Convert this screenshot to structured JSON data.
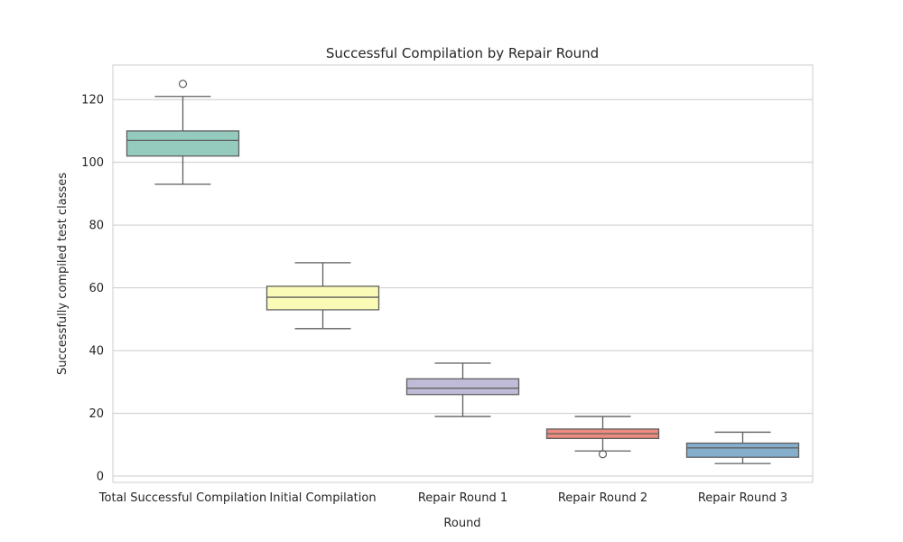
{
  "chart_data": {
    "type": "box",
    "title": "Successful Compilation by Repair Round",
    "xlabel": "Round",
    "ylabel": "Successfully compiled test classes",
    "ylim": [
      -2,
      131
    ],
    "yticks": [
      0,
      20,
      40,
      60,
      80,
      100,
      120
    ],
    "grid": "horizontal",
    "categories": [
      "Total Successful Compilation",
      "Initial Compilation",
      "Repair Round 1",
      "Repair Round 2",
      "Repair Round 3"
    ],
    "boxes": [
      {
        "whisker_low": 93,
        "q1": 102,
        "median": 107,
        "q3": 110,
        "whisker_high": 121,
        "outliers": [
          125
        ],
        "color": "#95cbbf"
      },
      {
        "whisker_low": 47,
        "q1": 53,
        "median": 57,
        "q3": 60.5,
        "whisker_high": 68,
        "outliers": [],
        "color": "#fafbb6"
      },
      {
        "whisker_low": 19,
        "q1": 26,
        "median": 28,
        "q3": 31,
        "whisker_high": 36,
        "outliers": [],
        "color": "#c0bcd8"
      },
      {
        "whisker_low": 8,
        "q1": 12,
        "median": 13.5,
        "q3": 15,
        "whisker_high": 19,
        "outliers": [
          7
        ],
        "color": "#ec8b80"
      },
      {
        "whisker_low": 4,
        "q1": 6,
        "median": 9,
        "q3": 10.5,
        "whisker_high": 14,
        "outliers": [],
        "color": "#85aecd"
      }
    ]
  }
}
